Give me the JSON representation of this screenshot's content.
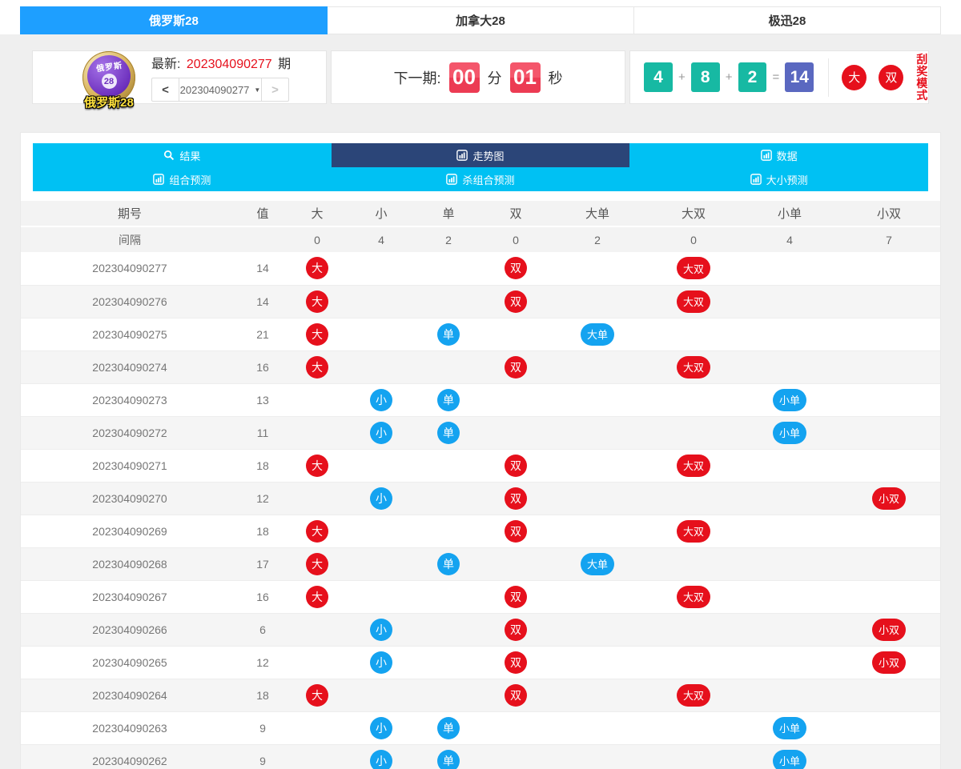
{
  "colors": {
    "accent_blue": "#1e9fff",
    "nav_cyan": "#00c1f3",
    "nav_active_navy": "#2b4578",
    "badge_red": "#e6101c",
    "badge_blue": "#14a3f0",
    "number_teal": "#17b9a3",
    "sum_indigo": "#5a68c0",
    "countdown_red": "#ef4358"
  },
  "game_tabs": [
    {
      "label": "俄罗斯28",
      "active": true
    },
    {
      "label": "加拿大28",
      "active": false
    },
    {
      "label": "极迅28",
      "active": false
    }
  ],
  "header": {
    "logo": {
      "ball_text": "俄罗斯",
      "ball_number": "28",
      "label": "俄罗斯28"
    },
    "latest": {
      "prefix": "最新:",
      "period": "202304090277",
      "suffix": "期"
    },
    "pager": {
      "prev": "<",
      "value": "202304090277",
      "caret": "▼",
      "next": ">"
    },
    "countdown": {
      "label": "下一期:",
      "minutes": "00",
      "minute_unit": "分",
      "seconds": "01",
      "second_unit": "秒"
    },
    "draw": {
      "numbers": [
        "4",
        "8",
        "2"
      ],
      "plus": "+",
      "equals": "=",
      "sum": "14",
      "result_badges": [
        "大",
        "双"
      ]
    },
    "mode_label": "刮奖模式"
  },
  "nav": {
    "items": [
      {
        "label": "结果",
        "icon": "search-icon",
        "active": false
      },
      {
        "label": "走势图",
        "icon": "bar-chart-icon",
        "active": true
      },
      {
        "label": "数据",
        "icon": "bar-chart-icon",
        "active": false
      },
      {
        "label": "组合预测",
        "icon": "bar-chart-icon",
        "active": false
      },
      {
        "label": "杀组合预测",
        "icon": "bar-chart-icon",
        "active": false
      },
      {
        "label": "大小预测",
        "icon": "bar-chart-icon",
        "active": false
      }
    ]
  },
  "table": {
    "columns": [
      "期号",
      "值",
      "大",
      "小",
      "单",
      "双",
      "大单",
      "大双",
      "小单",
      "小双"
    ],
    "interval_row": {
      "label": "间隔",
      "value": "",
      "counts": [
        "0",
        "4",
        "2",
        "0",
        "2",
        "0",
        "4",
        "7"
      ]
    },
    "badge_colors": {
      "大": "red",
      "小": "blue",
      "单": "blue",
      "双": "red",
      "大单": "blue",
      "大双": "red",
      "小单": "blue",
      "小双": "red"
    },
    "rows": [
      {
        "period": "202304090277",
        "value": "14",
        "badges": [
          "大",
          "",
          "",
          "双",
          "",
          "大双",
          "",
          ""
        ]
      },
      {
        "period": "202304090276",
        "value": "14",
        "badges": [
          "大",
          "",
          "",
          "双",
          "",
          "大双",
          "",
          ""
        ]
      },
      {
        "period": "202304090275",
        "value": "21",
        "badges": [
          "大",
          "",
          "单",
          "",
          "大单",
          "",
          "",
          ""
        ]
      },
      {
        "period": "202304090274",
        "value": "16",
        "badges": [
          "大",
          "",
          "",
          "双",
          "",
          "大双",
          "",
          ""
        ]
      },
      {
        "period": "202304090273",
        "value": "13",
        "badges": [
          "",
          "小",
          "单",
          "",
          "",
          "",
          "小单",
          ""
        ]
      },
      {
        "period": "202304090272",
        "value": "11",
        "badges": [
          "",
          "小",
          "单",
          "",
          "",
          "",
          "小单",
          ""
        ]
      },
      {
        "period": "202304090271",
        "value": "18",
        "badges": [
          "大",
          "",
          "",
          "双",
          "",
          "大双",
          "",
          ""
        ]
      },
      {
        "period": "202304090270",
        "value": "12",
        "badges": [
          "",
          "小",
          "",
          "双",
          "",
          "",
          "",
          "小双"
        ]
      },
      {
        "period": "202304090269",
        "value": "18",
        "badges": [
          "大",
          "",
          "",
          "双",
          "",
          "大双",
          "",
          ""
        ]
      },
      {
        "period": "202304090268",
        "value": "17",
        "badges": [
          "大",
          "",
          "单",
          "",
          "大单",
          "",
          "",
          ""
        ]
      },
      {
        "period": "202304090267",
        "value": "16",
        "badges": [
          "大",
          "",
          "",
          "双",
          "",
          "大双",
          "",
          ""
        ]
      },
      {
        "period": "202304090266",
        "value": "6",
        "badges": [
          "",
          "小",
          "",
          "双",
          "",
          "",
          "",
          "小双"
        ]
      },
      {
        "period": "202304090265",
        "value": "12",
        "badges": [
          "",
          "小",
          "",
          "双",
          "",
          "",
          "",
          "小双"
        ]
      },
      {
        "period": "202304090264",
        "value": "18",
        "badges": [
          "大",
          "",
          "",
          "双",
          "",
          "大双",
          "",
          ""
        ]
      },
      {
        "period": "202304090263",
        "value": "9",
        "badges": [
          "",
          "小",
          "单",
          "",
          "",
          "",
          "小单",
          ""
        ]
      },
      {
        "period": "202304090262",
        "value": "9",
        "badges": [
          "",
          "小",
          "单",
          "",
          "",
          "",
          "小单",
          ""
        ]
      }
    ]
  }
}
